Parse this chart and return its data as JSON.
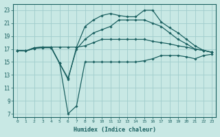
{
  "bg_color": "#c8e8e4",
  "grid_color": "#a0cccc",
  "line_color": "#1a6060",
  "xlabel": "Humidex (Indice chaleur)",
  "xlim": [
    -0.5,
    23.5
  ],
  "ylim": [
    6.5,
    24.0
  ],
  "xticks": [
    0,
    1,
    2,
    3,
    4,
    5,
    6,
    7,
    8,
    9,
    10,
    11,
    12,
    13,
    14,
    15,
    16,
    17,
    18,
    19,
    20,
    21,
    22,
    23
  ],
  "yticks": [
    7,
    9,
    11,
    13,
    15,
    17,
    19,
    21,
    23
  ],
  "curves": [
    {
      "x": [
        0,
        1,
        2,
        3,
        4,
        5,
        6,
        7,
        8,
        9,
        10,
        11,
        12,
        13,
        14,
        15,
        16,
        17,
        18,
        19,
        20,
        21,
        22,
        23
      ],
      "y": [
        16.8,
        16.7,
        17.1,
        17.2,
        17.2,
        14.8,
        7.0,
        8.2,
        15.0,
        15.0,
        15.0,
        15.0,
        15.0,
        15.0,
        15.0,
        15.2,
        15.5,
        16.0,
        16.0,
        16.0,
        15.8,
        15.5,
        16.0,
        16.2
      ]
    },
    {
      "x": [
        0,
        1,
        2,
        3,
        4,
        5,
        6,
        7,
        8,
        9,
        10,
        11,
        12,
        13,
        14,
        15,
        16,
        17,
        18,
        19,
        20,
        21,
        22,
        23
      ],
      "y": [
        16.8,
        16.7,
        17.1,
        17.3,
        17.3,
        17.3,
        17.3,
        17.3,
        17.5,
        18.0,
        18.5,
        18.5,
        18.5,
        18.5,
        18.5,
        18.5,
        18.2,
        18.0,
        17.8,
        17.5,
        17.3,
        17.0,
        16.8,
        16.5
      ]
    },
    {
      "x": [
        0,
        1,
        2,
        3,
        4,
        5,
        6,
        7,
        8,
        9,
        10,
        11,
        12,
        13,
        14,
        15,
        16,
        17,
        18,
        19,
        20,
        21,
        22,
        23
      ],
      "y": [
        16.8,
        16.7,
        17.2,
        17.3,
        17.3,
        14.8,
        12.5,
        17.0,
        18.5,
        19.5,
        20.0,
        20.5,
        21.5,
        21.5,
        21.5,
        21.5,
        21.0,
        20.5,
        19.5,
        18.5,
        17.8,
        17.0,
        16.8,
        16.5
      ]
    },
    {
      "x": [
        0,
        1,
        2,
        3,
        4,
        5,
        6,
        7,
        8,
        9,
        10,
        11,
        12,
        13,
        14,
        15,
        16,
        17,
        18,
        19,
        20,
        21,
        22,
        23
      ],
      "y": [
        16.8,
        16.7,
        17.2,
        17.3,
        17.3,
        14.8,
        12.3,
        17.3,
        20.5,
        21.5,
        22.2,
        22.5,
        22.2,
        22.0,
        22.0,
        23.0,
        23.0,
        21.2,
        20.3,
        19.5,
        18.5,
        17.5,
        16.8,
        16.5
      ]
    }
  ]
}
